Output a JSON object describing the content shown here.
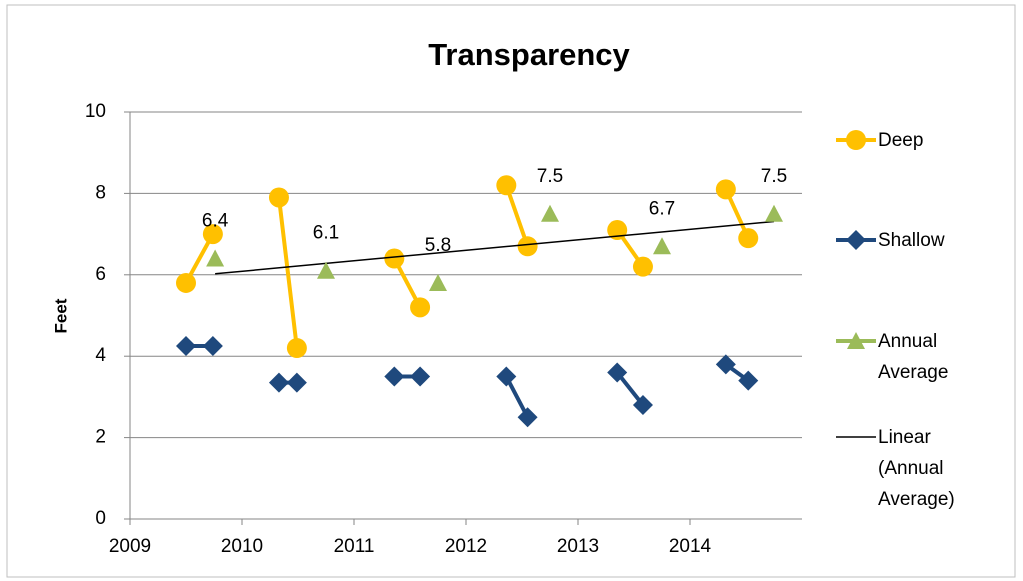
{
  "chart_data": {
    "type": "line",
    "title": "Transparency",
    "y_label": "Feet",
    "xlim": [
      2009,
      2015
    ],
    "xticks": [
      2009,
      2010,
      2011,
      2012,
      2013,
      2014
    ],
    "ylim": [
      0,
      10
    ],
    "yticks": [
      0,
      2,
      4,
      6,
      8,
      10
    ],
    "grid": true,
    "legend": "right",
    "series": [
      {
        "name": "Deep",
        "color": "#FFC000",
        "marker": "circle",
        "line": true,
        "x": [
          2009.5,
          2009.74,
          null,
          2010.33,
          2010.49,
          null,
          2011.36,
          2011.59,
          null,
          2012.36,
          2012.55,
          null,
          2013.35,
          2013.58,
          null,
          2014.32,
          2014.52
        ],
        "values": [
          5.8,
          7.0,
          null,
          7.9,
          4.2,
          null,
          6.4,
          5.2,
          null,
          8.2,
          6.7,
          null,
          7.1,
          6.2,
          null,
          8.1,
          6.9
        ]
      },
      {
        "name": "Shallow",
        "color": "#1F497D",
        "marker": "diamond",
        "line": true,
        "x": [
          2009.5,
          2009.74,
          null,
          2010.33,
          2010.49,
          null,
          2011.36,
          2011.59,
          null,
          2012.36,
          2012.55,
          null,
          2013.35,
          2013.58,
          null,
          2014.32,
          2014.52
        ],
        "values": [
          4.25,
          4.25,
          null,
          3.35,
          3.35,
          null,
          3.5,
          3.5,
          null,
          3.5,
          2.5,
          null,
          3.6,
          2.8,
          null,
          3.8,
          3.4
        ]
      },
      {
        "name": "Annual Average",
        "color": "#9BBB59",
        "marker": "triangle",
        "line": false,
        "data_labels": true,
        "trendline": "Linear (Annual Average)",
        "trendline_color": "#000000",
        "x": [
          2009.76,
          2010.75,
          2011.75,
          2012.75,
          2013.75,
          2014.75
        ],
        "values": [
          6.4,
          6.1,
          5.8,
          7.5,
          6.7,
          7.5
        ]
      }
    ]
  }
}
